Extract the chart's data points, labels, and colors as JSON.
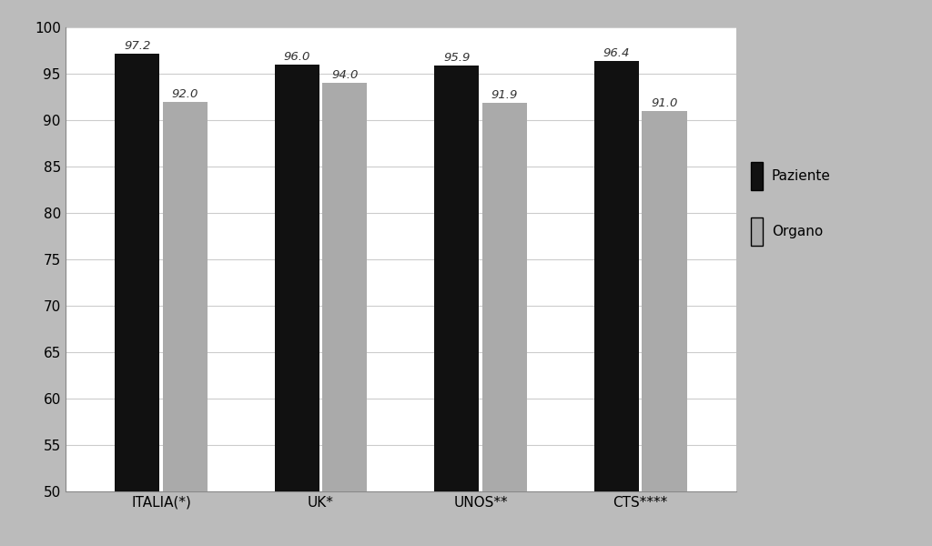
{
  "categories": [
    "ITALIA(*)",
    "UK*",
    "UNOS**",
    "CTS****"
  ],
  "paziente_values": [
    97.2,
    96.0,
    95.9,
    96.4
  ],
  "organo_values": [
    92.0,
    94.0,
    91.9,
    91.0
  ],
  "paziente_color": "#111111",
  "organo_color": "#aaaaaa",
  "ylim": [
    50,
    100
  ],
  "yticks": [
    50,
    55,
    60,
    65,
    70,
    75,
    80,
    85,
    90,
    95,
    100
  ],
  "legend_labels": [
    "Paziente",
    "Organo"
  ],
  "bar_width": 0.28,
  "background_color": "#ffffff",
  "outer_background": "#bbbbbb",
  "grid_color": "#cccccc",
  "label_fontsize": 11,
  "tick_fontsize": 11,
  "value_fontsize": 9.5
}
